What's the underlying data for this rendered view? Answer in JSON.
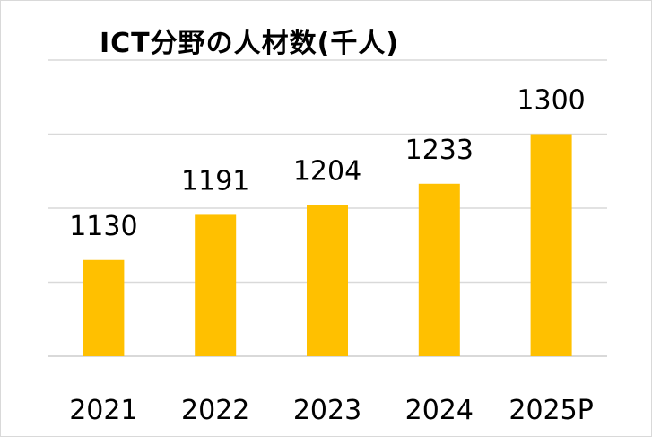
{
  "chart_data": {
    "type": "bar",
    "title": "ICT分野の人材数(千人)",
    "categories": [
      "2021",
      "2022",
      "2023",
      "2024",
      "2025P"
    ],
    "values": [
      1130,
      1191,
      1204,
      1233,
      1300
    ],
    "ylim": [
      1000,
      1400
    ],
    "grid": true,
    "colors": {
      "bar": "#ffc000",
      "grid": "#d9d9d9",
      "text": "#000000"
    }
  }
}
